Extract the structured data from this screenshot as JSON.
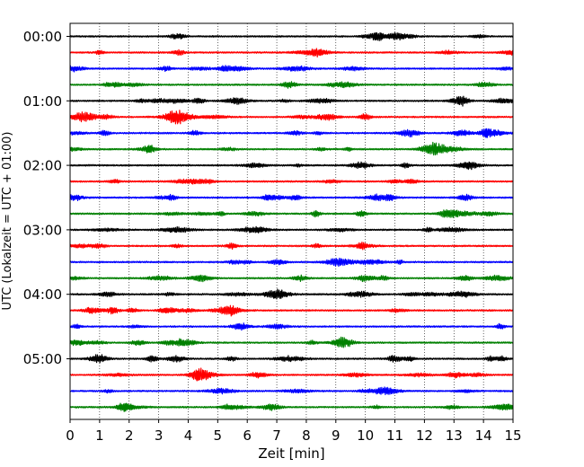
{
  "chart_data": {
    "type": "line",
    "title": "",
    "xlabel": "Zeit  [min]",
    "ylabel": "UTC (Lokalzeit = UTC + 01:00)",
    "xlim": [
      0,
      15
    ],
    "x_ticks": [
      "0",
      "1",
      "2",
      "3",
      "4",
      "5",
      "6",
      "7",
      "8",
      "9",
      "10",
      "11",
      "12",
      "13",
      "14",
      "15"
    ],
    "y_ticks": [
      "00:00",
      "01:00",
      "02:00",
      "03:00",
      "04:00",
      "05:00"
    ],
    "trace_interval_minutes": 15,
    "trace_count": 24,
    "trace_colors": [
      "#000000",
      "#ff0000",
      "#0000ff",
      "#008000"
    ],
    "grid": "vertical dotted at each minute",
    "legend": "none"
  }
}
